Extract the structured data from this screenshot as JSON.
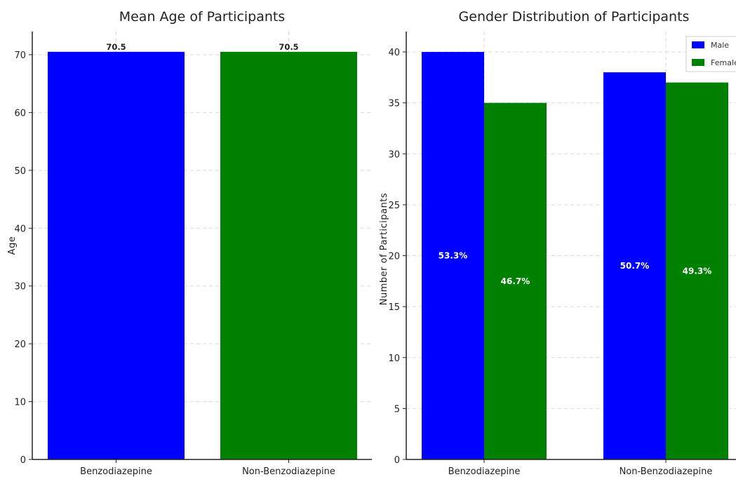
{
  "chart_data": [
    {
      "type": "bar",
      "title": "Mean Age of Participants",
      "ylabel": "Age",
      "categories": [
        "Benzodiazepine",
        "Non-Benzodiazepine"
      ],
      "values": [
        70.5,
        70.5
      ],
      "value_labels": [
        "70.5",
        "70.5"
      ],
      "bar_colors": [
        "#0000ff",
        "#008000"
      ],
      "ylim": [
        0,
        74
      ],
      "yticks": [
        0,
        10,
        20,
        30,
        40,
        50,
        60,
        70
      ],
      "grid": true
    },
    {
      "type": "bar",
      "title": "Gender Distribution of Participants",
      "ylabel": "Number of Participants",
      "categories": [
        "Benzodiazepine",
        "Non-Benzodiazepine"
      ],
      "series": [
        {
          "name": "Male",
          "values": [
            40,
            38
          ],
          "percent_labels": [
            "53.3%",
            "50.7%"
          ],
          "color": "#0000ff"
        },
        {
          "name": "Female",
          "values": [
            35,
            37
          ],
          "percent_labels": [
            "46.7%",
            "49.3%"
          ],
          "color": "#008000"
        }
      ],
      "ylim": [
        0,
        42
      ],
      "yticks": [
        0,
        5,
        10,
        15,
        20,
        25,
        30,
        35,
        40
      ],
      "legend": "top-right",
      "grid": true
    }
  ]
}
